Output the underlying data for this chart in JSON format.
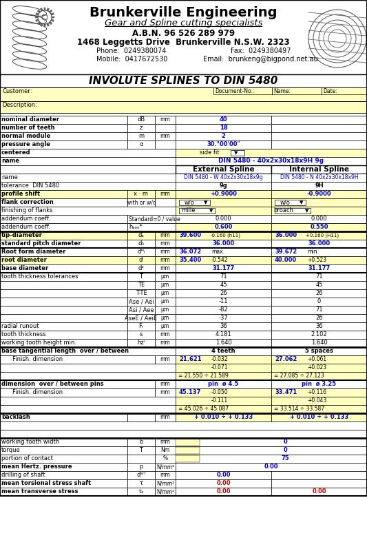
{
  "company": "Brunkerville Engineering",
  "tagline": "Gear and Spline cutting specialists",
  "abn": "A.B.N. 96 526 289 979",
  "address": "1468 Leggetts Drive  Brunkerville N.S.W. 2323",
  "phone": "Phone:  0249380074",
  "fax": "Fax:  0249380497",
  "mobile": "Mobile:  0417672530",
  "email": "Email:  brunkeng@bigpond.net.au",
  "title": "INVOLUTE SPLINES TO DIN 5480",
  "yellow_bg": "#FFFFC0",
  "blue_text": "#0000CC",
  "red_text": "#CC0000"
}
